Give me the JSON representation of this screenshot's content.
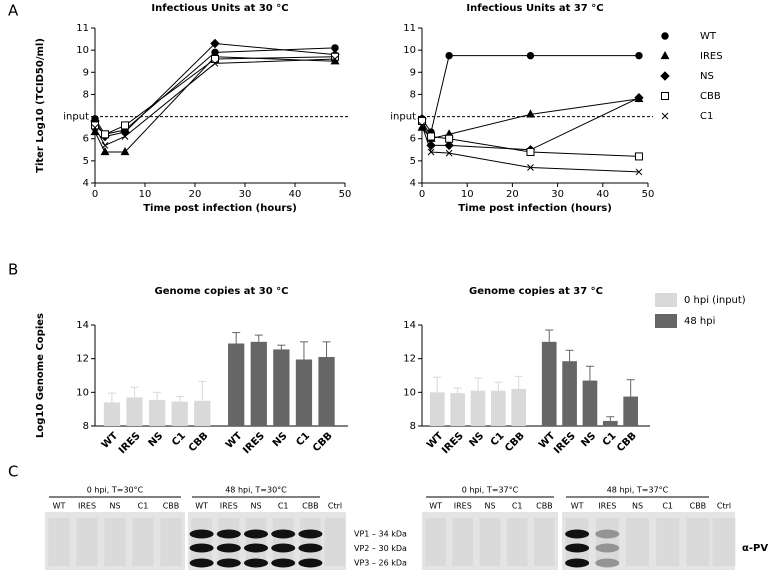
{
  "panels": [
    "A",
    "B",
    "C"
  ],
  "chart_data": [
    {
      "type": "line",
      "title": "Infectious Units at 30 °C",
      "xlabel": "Time post infection (hours)",
      "ylabel": "Titer Log10 (TCID50/ml)",
      "x": [
        0,
        2,
        6,
        24,
        48
      ],
      "xlim": [
        0,
        50
      ],
      "xticks": [
        0,
        10,
        20,
        30,
        40,
        50
      ],
      "ylim": [
        4,
        11
      ],
      "yticks": [
        4,
        5,
        6,
        {
          "value": 7,
          "label": "input"
        },
        8,
        9,
        10,
        11
      ],
      "input_line": 7,
      "series": [
        {
          "name": "WT",
          "color": "#000000",
          "marker": "circle",
          "values": [
            6.9,
            6.2,
            6.4,
            9.9,
            10.1
          ]
        },
        {
          "name": "IRES",
          "color": "#000000",
          "marker": "triangle",
          "values": [
            6.3,
            5.4,
            5.4,
            9.7,
            9.5
          ]
        },
        {
          "name": "NS",
          "color": "#000000",
          "marker": "diamond",
          "values": [
            6.8,
            6.1,
            6.3,
            10.3,
            9.8
          ]
        },
        {
          "name": "CBB",
          "color": "#000000",
          "marker": "square",
          "values": [
            6.6,
            6.2,
            6.6,
            9.6,
            9.7
          ]
        },
        {
          "name": "C1",
          "color": "#000000",
          "marker": "x",
          "values": [
            6.5,
            5.7,
            6.1,
            9.4,
            9.6
          ]
        }
      ]
    },
    {
      "type": "line",
      "title": "Infectious Units at 37 °C",
      "xlabel": "Time post infection (hours)",
      "legend": "right",
      "x": [
        0,
        2,
        6,
        24,
        48
      ],
      "xlim": [
        0,
        50
      ],
      "xticks": [
        0,
        10,
        20,
        30,
        40,
        50
      ],
      "ylim": [
        4,
        11
      ],
      "yticks": [
        4,
        5,
        6,
        {
          "value": 7,
          "label": "input"
        },
        8,
        9,
        10,
        11
      ],
      "input_line": 7,
      "series": [
        {
          "name": "WT",
          "color": "#000000",
          "marker": "circle",
          "values": [
            6.9,
            6.3,
            9.75,
            9.75,
            9.75
          ]
        },
        {
          "name": "IRES",
          "color": "#000000",
          "marker": "triangle",
          "values": [
            6.5,
            6.0,
            6.2,
            7.1,
            7.8
          ]
        },
        {
          "name": "NS",
          "color": "#000000",
          "marker": "diamond",
          "values": [
            6.9,
            5.7,
            5.7,
            5.5,
            7.85
          ]
        },
        {
          "name": "CBB",
          "color": "#000000",
          "marker": "square",
          "values": [
            6.8,
            6.1,
            6.0,
            5.4,
            5.2
          ]
        },
        {
          "name": "C1",
          "color": "#000000",
          "marker": "x",
          "values": [
            6.6,
            5.4,
            5.35,
            4.7,
            4.5
          ]
        }
      ]
    },
    {
      "type": "bar",
      "title": "Genome copies at 30 °C",
      "ylabel": "Log10 Genome Copies",
      "categories": [
        "WT",
        "IRES",
        "NS",
        "C1",
        "CBB"
      ],
      "ylim": [
        8,
        14
      ],
      "yticks": [
        8,
        10,
        12,
        14
      ],
      "series": [
        {
          "name": "0 hpi (input)",
          "color": "#d9d9d9",
          "values": [
            9.4,
            9.7,
            9.55,
            9.45,
            9.5
          ],
          "errors": [
            0.55,
            0.6,
            0.45,
            0.3,
            1.15
          ]
        },
        {
          "name": "48 hpi",
          "color": "#666666",
          "values": [
            12.9,
            13.0,
            12.55,
            11.95,
            12.1
          ],
          "errors": [
            0.65,
            0.4,
            0.25,
            1.05,
            0.9
          ]
        }
      ]
    },
    {
      "type": "bar",
      "title": "Genome copies at 37 °C",
      "legend": "right",
      "categories": [
        "WT",
        "IRES",
        "NS",
        "C1",
        "CBB"
      ],
      "ylim": [
        8,
        14
      ],
      "yticks": [
        8,
        10,
        12,
        14
      ],
      "series": [
        {
          "name": "0 hpi (input)",
          "color": "#d9d9d9",
          "values": [
            10.0,
            9.95,
            10.1,
            10.1,
            10.2
          ],
          "errors": [
            0.9,
            0.3,
            0.75,
            0.5,
            0.75
          ]
        },
        {
          "name": "48 hpi",
          "color": "#666666",
          "values": [
            13.0,
            11.85,
            10.7,
            8.3,
            9.75
          ],
          "errors": [
            0.7,
            0.65,
            0.85,
            0.25,
            1.0
          ]
        }
      ]
    }
  ],
  "blots": {
    "groups": [
      {
        "title": "0 hpi, T=30°C",
        "lanes": [
          "WT",
          "IRES",
          "NS",
          "C1",
          "CBB"
        ]
      },
      {
        "title": "48 hpi, T=30°C",
        "lanes": [
          "WT",
          "IRES",
          "NS",
          "C1",
          "CBB",
          "Ctrl"
        ]
      },
      {
        "title": "0 hpi, T=37°C",
        "lanes": [
          "WT",
          "IRES",
          "NS",
          "C1",
          "CBB"
        ]
      },
      {
        "title": "48 hpi, T=37°C",
        "lanes": [
          "WT",
          "IRES",
          "NS",
          "C1",
          "CBB",
          "Ctrl"
        ]
      }
    ],
    "bands": [
      "VP1 – 34 kDa",
      "VP2 – 30 kDa",
      "VP3 – 26 kDa"
    ],
    "antibody": "α-PV"
  }
}
